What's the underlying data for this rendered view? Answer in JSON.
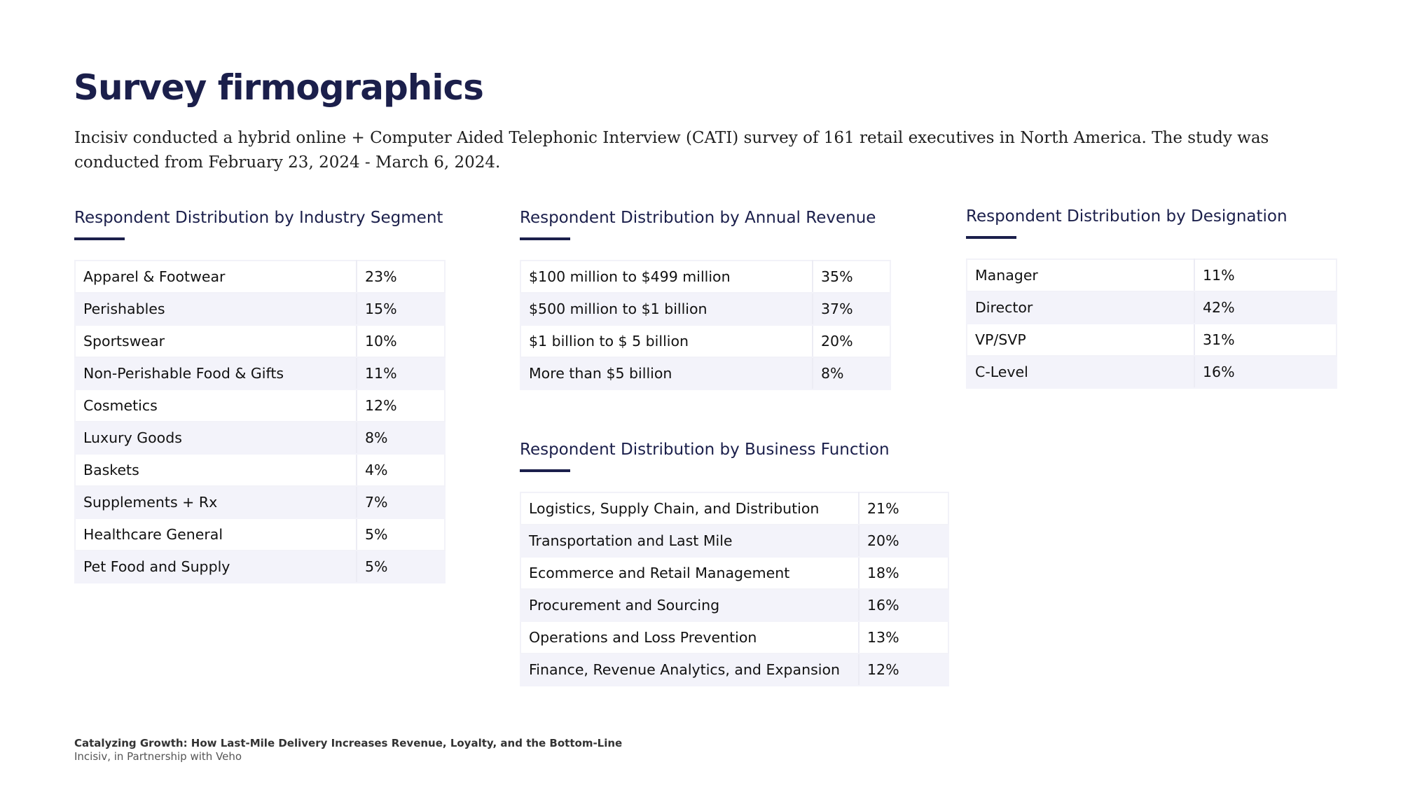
{
  "title": "Survey firmographics",
  "intro": "Incisiv conducted a hybrid online + Computer Aided Telephonic Interview (CATI) survey of 161 retail executives in North America. The study was conducted from February 23, 2024 - March 6, 2024.",
  "sections": {
    "industry": {
      "title": "Respondent Distribution by Industry Segment",
      "rows": [
        {
          "label": "Apparel & Footwear",
          "value": "23%"
        },
        {
          "label": "Perishables",
          "value": "15%"
        },
        {
          "label": "Sportswear",
          "value": "10%"
        },
        {
          "label": "Non-Perishable Food & Gifts",
          "value": "11%"
        },
        {
          "label": "Cosmetics",
          "value": "12%"
        },
        {
          "label": "Luxury Goods",
          "value": "8%"
        },
        {
          "label": "Baskets",
          "value": "4%"
        },
        {
          "label": "Supplements + Rx",
          "value": "7%"
        },
        {
          "label": "Healthcare General",
          "value": "5%"
        },
        {
          "label": "Pet Food and Supply",
          "value": "5%"
        }
      ]
    },
    "revenue": {
      "title": "Respondent Distribution by Annual Revenue",
      "rows": [
        {
          "label": "$100 million to $499 million",
          "value": "35%"
        },
        {
          "label": "$500 million to $1 billion",
          "value": "37%"
        },
        {
          "label": "$1 billion to $ 5 billion",
          "value": "20%"
        },
        {
          "label": "More than $5 billion",
          "value": "8%"
        }
      ]
    },
    "function": {
      "title": "Respondent Distribution by Business Function",
      "rows": [
        {
          "label": "Logistics, Supply Chain, and Distribution",
          "value": "21%"
        },
        {
          "label": "Transportation and Last Mile",
          "value": "20%"
        },
        {
          "label": "Ecommerce and Retail Management",
          "value": "18%"
        },
        {
          "label": "Procurement and Sourcing",
          "value": "16%"
        },
        {
          "label": "Operations and Loss Prevention",
          "value": "13%"
        },
        {
          "label": "Finance, Revenue Analytics, and Expansion",
          "value": "12%"
        }
      ]
    },
    "designation": {
      "title": "Respondent Distribution by Designation",
      "rows": [
        {
          "label": "Manager",
          "value": "11%"
        },
        {
          "label": "Director",
          "value": "42%"
        },
        {
          "label": "VP/SVP",
          "value": "31%"
        },
        {
          "label": "C-Level",
          "value": "16%"
        }
      ]
    }
  },
  "footer": {
    "title": "Catalyzing Growth: How Last-Mile Delivery Increases Revenue, Loyalty, and the Bottom-Line",
    "subtitle": "Incisiv, in Partnership with Veho"
  }
}
